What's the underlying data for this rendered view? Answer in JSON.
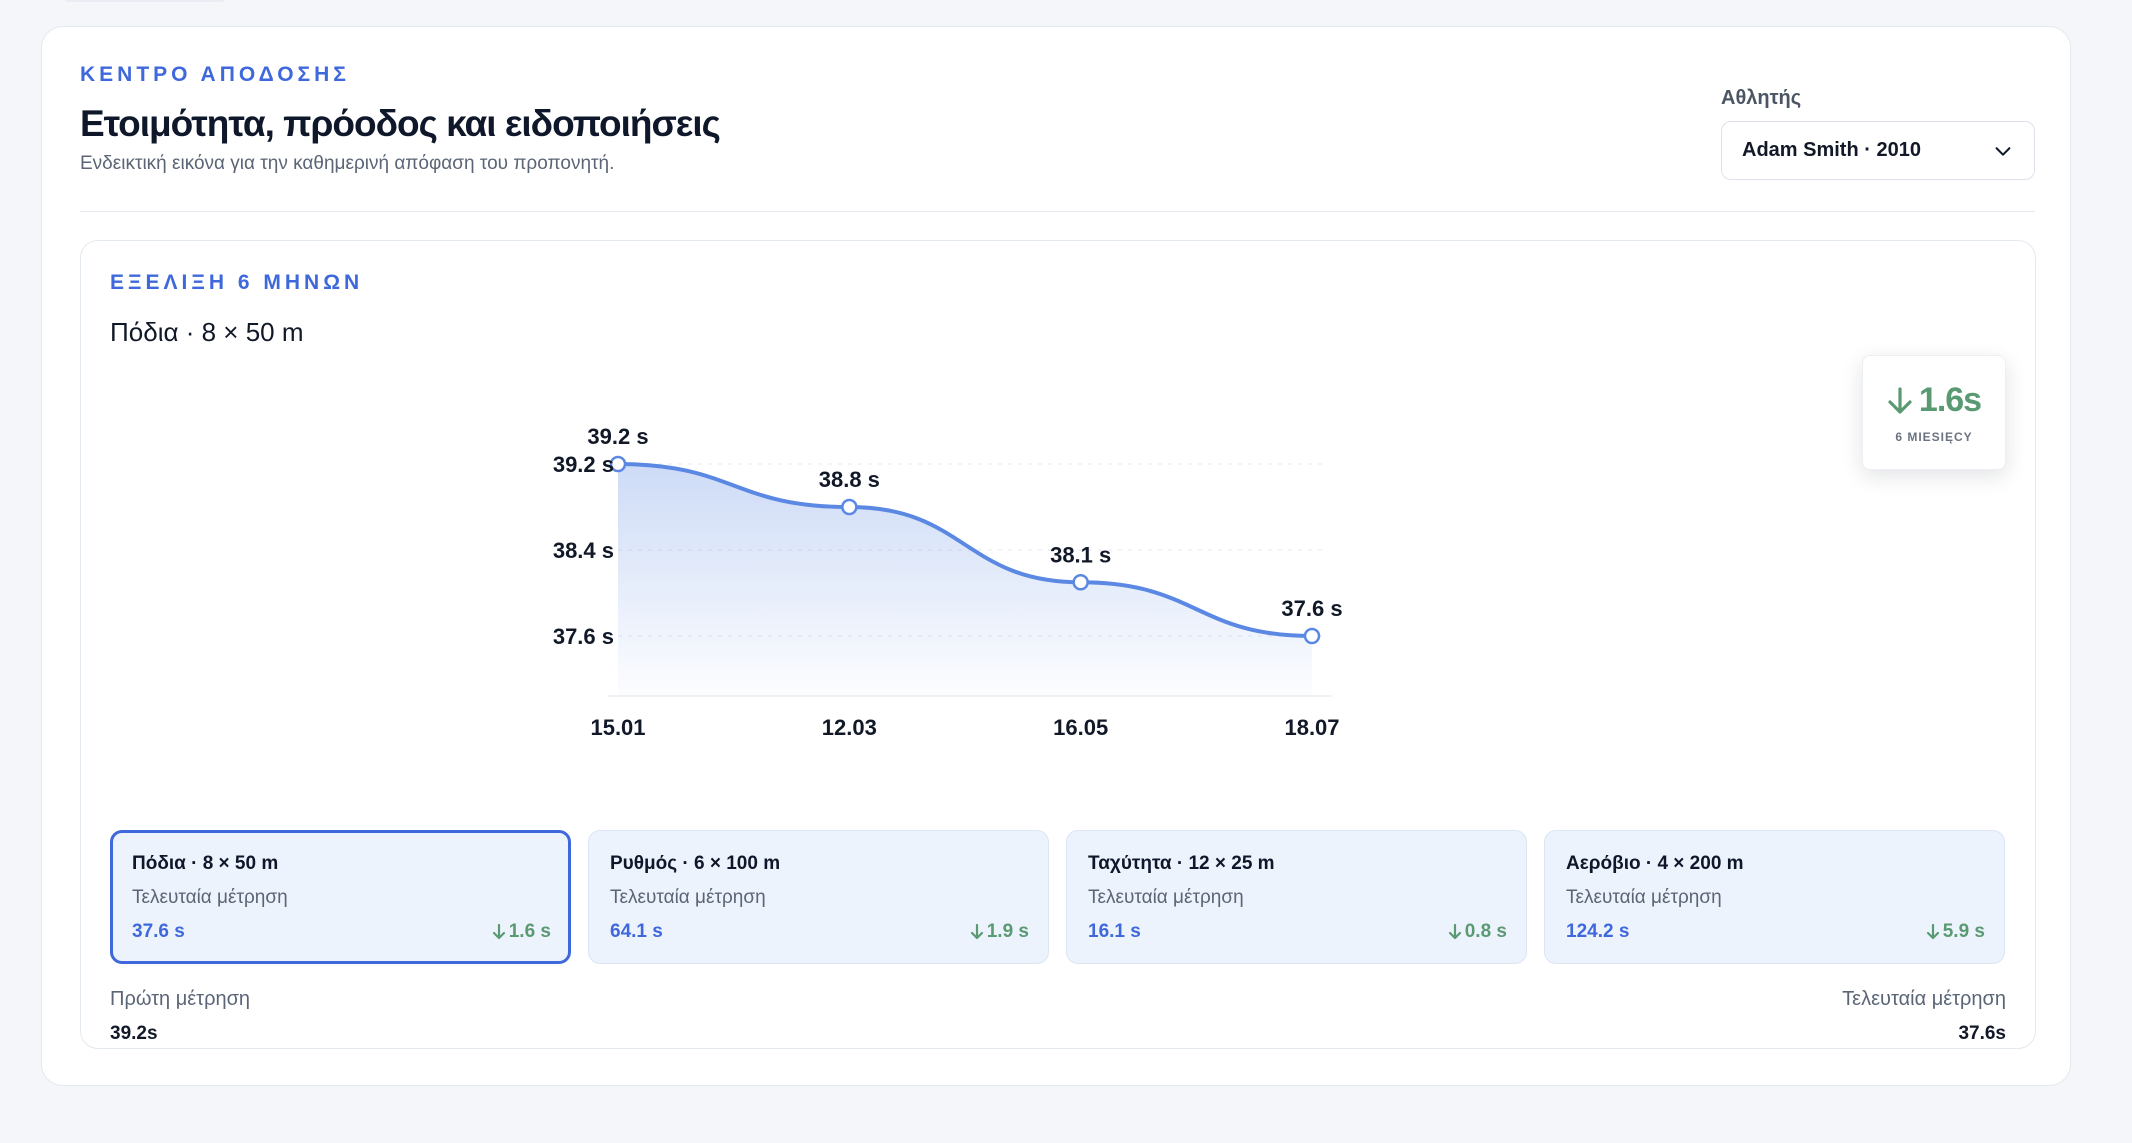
{
  "header": {
    "eyebrow": "ΚΕΝΤΡΟ ΑΠΟΔΟΣΗΣ",
    "title": "Ετοιμότητα, πρόοδος και ειδοποιήσεις",
    "subtitle": "Ενδεικτική εικόνα για την καθημερινή απόφαση του προπονητή."
  },
  "athlete": {
    "label": "Αθλητής",
    "selected": "Adam Smith · 2010"
  },
  "progress": {
    "eyebrow": "ΕΞΕΛΙΞΗ 6 ΜΗΝΩΝ",
    "title": "Πόδια · 8 × 50 m",
    "delta_value": "1.6s",
    "delta_caption": "6 MIESIĘCY"
  },
  "chart_data": {
    "type": "area",
    "x": [
      "15.01",
      "12.03",
      "16.05",
      "18.07"
    ],
    "series": [
      {
        "values": [
          39.2,
          38.8,
          38.1,
          37.6
        ]
      }
    ],
    "data_labels": [
      "39.2 s",
      "38.8 s",
      "38.1 s",
      "37.6 s"
    ],
    "y_ticks": [
      39.2,
      38.4,
      37.6
    ],
    "y_tick_labels": [
      "39.2 s",
      "38.4 s",
      "37.6 s"
    ],
    "ylim": [
      37.6,
      39.2
    ],
    "grid": true,
    "line_color": "#5a88e3"
  },
  "metrics": [
    {
      "name": "Πόδια · 8 × 50 m",
      "sub": "Τελευταία μέτρηση",
      "value": "37.6 s",
      "delta": "1.6 s",
      "active": true
    },
    {
      "name": "Ρυθμός · 6 × 100 m",
      "sub": "Τελευταία μέτρηση",
      "value": "64.1 s",
      "delta": "1.9 s",
      "active": false
    },
    {
      "name": "Ταχύτητα · 12 × 25 m",
      "sub": "Τελευταία μέτρηση",
      "value": "16.1 s",
      "delta": "0.8 s",
      "active": false
    },
    {
      "name": "Αερόβιο · 4 × 200 m",
      "sub": "Τελευταία μέτρηση",
      "value": "124.2 s",
      "delta": "5.9 s",
      "active": false
    }
  ],
  "footer": {
    "first_label": "Πρώτη μέτρηση",
    "first_value": "39.2s",
    "last_label": "Τελευταία μέτρηση",
    "last_value": "37.6s"
  },
  "colors": {
    "accent": "#3e68dc",
    "positive": "#5a9a72"
  }
}
